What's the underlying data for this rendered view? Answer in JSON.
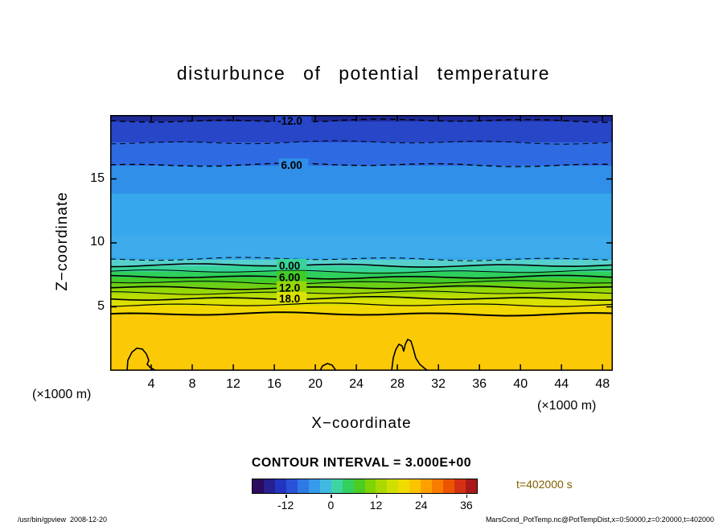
{
  "title": "disturbunce of potential temperature",
  "axes": {
    "x_label": "X−coordinate",
    "z_label": "Z−coordinate",
    "x_unit": "(×1000 m)",
    "x_ticks": [
      4,
      8,
      12,
      16,
      20,
      24,
      28,
      32,
      36,
      40,
      44,
      48
    ],
    "z_ticks": [
      5,
      10,
      15
    ]
  },
  "annotations": {
    "contour_interval_text": "CONTOUR INTERVAL = 3.000E+00",
    "time_text": "t=402000 s",
    "time_color": "#806000"
  },
  "footer": {
    "left": "/usr/bin/gpview  2008-12-20",
    "right": "MarsCond_PotTemp.nc@PotTempDist,x=0:50000,z=0:20000,t=402000"
  },
  "chart_data": {
    "type": "heatmap",
    "subtype": "filled_contour_cross_section",
    "title": "disturbunce of potential temperature",
    "xlabel": "X−coordinate (×1000 m)",
    "ylabel": "Z−coordinate (×1000 m)",
    "x_range": [
      0,
      50
    ],
    "z_range": [
      0,
      20
    ],
    "contour_interval": 3.0,
    "visible_contour_labels_dashed": [
      "-12.0",
      "6.00"
    ],
    "visible_contour_labels_solid": [
      "0.00",
      "6.00",
      "12.0",
      "18.0"
    ],
    "bands": [
      {
        "f0": 0.0,
        "f1": 0.025,
        "color": "#1d2996"
      },
      {
        "f0": 0.025,
        "f1": 0.107,
        "color": "#2746c8"
      },
      {
        "f0": 0.107,
        "f1": 0.198,
        "color": "#2e6ae2"
      },
      {
        "f0": 0.198,
        "f1": 0.308,
        "color": "#2f8fe9"
      },
      {
        "f0": 0.308,
        "f1": 0.566,
        "color": "#36a7ec"
      },
      {
        "f0": 0.566,
        "f1": 0.591,
        "color": "#57d0cd"
      },
      {
        "f0": 0.591,
        "f1": 0.613,
        "color": "#37d49a"
      },
      {
        "f0": 0.613,
        "f1": 0.637,
        "color": "#2ecf5c"
      },
      {
        "f0": 0.637,
        "f1": 0.656,
        "color": "#42cb28"
      },
      {
        "f0": 0.656,
        "f1": 0.676,
        "color": "#6ccf15"
      },
      {
        "f0": 0.676,
        "f1": 0.699,
        "color": "#95d705"
      },
      {
        "f0": 0.699,
        "f1": 0.721,
        "color": "#badc00"
      },
      {
        "f0": 0.721,
        "f1": 0.746,
        "color": "#dbe100"
      },
      {
        "f0": 0.746,
        "f1": 0.781,
        "color": "#f2d800"
      },
      {
        "f0": 0.781,
        "f1": 1.0,
        "color": "#fcc907"
      },
      {
        "f0": 0.47,
        "f1": 0.555,
        "color": "#47b2ee",
        "op": 0.45
      }
    ],
    "lines": [
      {
        "f": 0.022,
        "style": "dashed",
        "w": 1.4,
        "label": "-12.0",
        "lx": 0.333
      },
      {
        "f": 0.107,
        "style": "dashed",
        "w": 1.0
      },
      {
        "f": 0.195,
        "style": "dashed",
        "w": 1.4,
        "label": "6.00",
        "lx": 0.34
      },
      {
        "f": 0.563,
        "style": "dashed",
        "w": 1.0
      },
      {
        "f": 0.588,
        "style": "solid",
        "w": 1.6,
        "label": "0.00",
        "lx": 0.336
      },
      {
        "f": 0.612,
        "style": "solid",
        "w": 1.0
      },
      {
        "f": 0.634,
        "style": "solid",
        "w": 1.6,
        "label": "6.00",
        "lx": 0.336
      },
      {
        "f": 0.654,
        "style": "solid",
        "w": 1.0
      },
      {
        "f": 0.675,
        "style": "solid",
        "w": 1.6,
        "label": "12.0",
        "lx": 0.336
      },
      {
        "f": 0.695,
        "style": "solid",
        "w": 1.0
      },
      {
        "f": 0.717,
        "style": "solid",
        "w": 1.6,
        "label": "18.0",
        "lx": 0.336
      },
      {
        "f": 0.742,
        "style": "solid",
        "w": 1.2
      },
      {
        "f": 0.778,
        "style": "solid",
        "w": 2.0
      }
    ],
    "blobs": [
      "M21 318 L22 305 L27 295 L33 290 L40 291 L45 297 L48 305 L46 310 L50 314 L57 318",
      "M350 318 L352 302 L355 292 L359 285 L363 287 L365 294 L367 285 L370 279 L374 281 L377 291 L380 302 L385 310 L391 315 L395 318",
      "M261 318 L264 312 L270 309 L276 311 L281 318"
    ],
    "colorbar": {
      "ticks": [
        -12,
        0,
        12,
        24,
        36
      ],
      "value_min": -21,
      "value_max": 39,
      "colors": [
        "#2c0a5e",
        "#27208f",
        "#2335c0",
        "#2a52d8",
        "#2e79e4",
        "#359ae9",
        "#3fb9e2",
        "#3fd4a4",
        "#33d060",
        "#4ccc22",
        "#7dd303",
        "#a9d900",
        "#cfe000",
        "#efdc00",
        "#fcc400",
        "#ffa000",
        "#f97b00",
        "#ec5400",
        "#d63014",
        "#a81a1a"
      ]
    }
  }
}
